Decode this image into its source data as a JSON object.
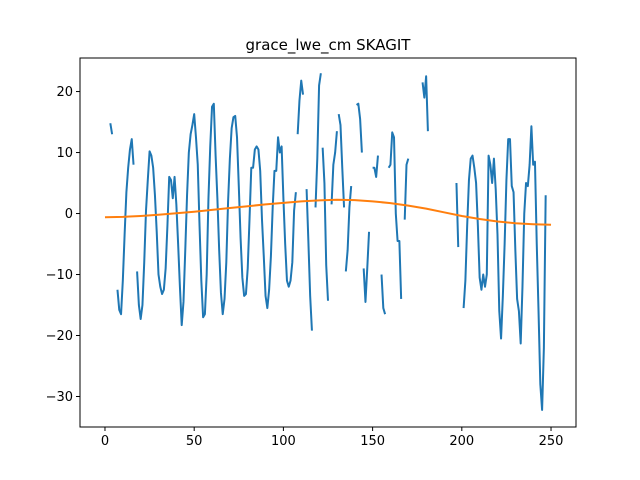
{
  "chart_data": {
    "type": "line",
    "title": "grace_lwe_cm SKAGIT",
    "xlabel": "",
    "ylabel": "",
    "xlim": [
      -14,
      264
    ],
    "ylim": [
      -35,
      25.5
    ],
    "x_ticks": [
      0,
      50,
      100,
      150,
      200,
      250
    ],
    "y_ticks": [
      -30,
      -20,
      -10,
      0,
      10,
      20
    ],
    "x_tick_labels": [
      "0",
      "50",
      "100",
      "150",
      "200",
      "250"
    ],
    "y_tick_labels": [
      "−30",
      "−20",
      "−10",
      "0",
      "10",
      "20"
    ],
    "grid": false,
    "legend": "none",
    "series": [
      {
        "color": "#1f77b4",
        "points": [
          [
            3,
            14.8
          ],
          [
            4,
            13.0
          ],
          null,
          [
            7,
            -12.5
          ],
          [
            8,
            -15.8
          ],
          [
            9,
            -16.5
          ],
          [
            10,
            -11.0
          ],
          [
            11,
            -3.5
          ],
          [
            12,
            3.5
          ],
          [
            13,
            7.5
          ],
          [
            14,
            10.5
          ],
          [
            15,
            12.2
          ],
          [
            16,
            8.0
          ],
          null,
          [
            18,
            -9.5
          ],
          [
            19,
            -15.0
          ],
          [
            20,
            -17.3
          ],
          [
            21,
            -15.0
          ],
          [
            22,
            -8.0
          ],
          [
            23,
            0.5
          ],
          [
            24,
            5.5
          ],
          [
            25,
            10.2
          ],
          [
            26,
            9.5
          ],
          [
            27,
            7.5
          ],
          [
            28,
            3.0
          ],
          [
            29,
            -3.0
          ],
          [
            30,
            -10.0
          ],
          [
            31,
            -12.0
          ],
          [
            32,
            -13.2
          ],
          [
            33,
            -12.5
          ],
          [
            34,
            -9.0
          ],
          [
            35,
            -2.0
          ],
          [
            36,
            6.0
          ],
          [
            37,
            5.5
          ],
          [
            38,
            2.5
          ],
          [
            39,
            6.0
          ],
          [
            40,
            1.5
          ],
          [
            41,
            -5.0
          ],
          [
            42,
            -12.0
          ],
          [
            43,
            -18.3
          ],
          [
            44,
            -14.5
          ],
          [
            45,
            -6.0
          ],
          [
            46,
            3.0
          ],
          [
            47,
            10.0
          ],
          [
            48,
            13.0
          ],
          [
            49,
            14.5
          ],
          [
            50,
            16.3
          ],
          [
            51,
            12.5
          ],
          [
            52,
            8.0
          ],
          [
            53,
            -2.0
          ],
          [
            54,
            -11.0
          ],
          [
            55,
            -17.0
          ],
          [
            56,
            -16.5
          ],
          [
            57,
            -10.0
          ],
          [
            58,
            2.5
          ],
          [
            59,
            11.0
          ],
          [
            60,
            17.5
          ],
          [
            61,
            18.0
          ],
          [
            62,
            9.5
          ],
          [
            63,
            2.5
          ],
          [
            64,
            -6.0
          ],
          [
            65,
            -13.0
          ],
          [
            66,
            -16.5
          ],
          [
            67,
            -14.0
          ],
          [
            68,
            -8.0
          ],
          [
            69,
            2.0
          ],
          [
            70,
            9.0
          ],
          [
            71,
            14.0
          ],
          [
            72,
            15.8
          ],
          [
            73,
            16.0
          ],
          [
            74,
            12.5
          ],
          [
            75,
            4.5
          ],
          [
            76,
            -4.0
          ],
          [
            77,
            -10.5
          ],
          [
            78,
            -13.5
          ],
          [
            79,
            -13.2
          ],
          [
            80,
            -9.0
          ],
          [
            81,
            -1.0
          ],
          [
            82,
            7.5
          ],
          [
            83,
            7.5
          ],
          [
            84,
            10.5
          ],
          [
            85,
            11.0
          ],
          [
            86,
            10.5
          ],
          [
            87,
            7.0
          ],
          [
            88,
            -1.0
          ],
          [
            89,
            -7.0
          ],
          [
            90,
            -13.5
          ],
          [
            91,
            -15.5
          ],
          [
            92,
            -12.5
          ],
          [
            93,
            -7.0
          ],
          [
            94,
            1.0
          ],
          [
            95,
            7.0
          ],
          [
            96,
            7.0
          ],
          [
            97,
            12.5
          ],
          [
            98,
            10.0
          ],
          [
            99,
            11.0
          ],
          [
            100,
            2.5
          ],
          [
            101,
            -5.0
          ],
          [
            102,
            -11.0
          ],
          [
            103,
            -12.0
          ],
          [
            104,
            -11.0
          ],
          [
            105,
            -8.0
          ],
          [
            106,
            0.5
          ],
          [
            107,
            3.5
          ],
          null,
          [
            108,
            13.0
          ],
          [
            109,
            18.5
          ],
          [
            110,
            21.8
          ],
          [
            111,
            19.5
          ],
          null,
          [
            113,
            4.0
          ],
          [
            114,
            -4.5
          ],
          [
            115,
            -13.5
          ],
          [
            116,
            -19.2
          ],
          null,
          [
            118,
            1.0
          ],
          [
            119,
            9.0
          ],
          [
            120,
            21.0
          ],
          [
            121,
            23.0
          ],
          null,
          [
            122,
            10.8
          ],
          [
            123,
            5.0
          ],
          [
            124,
            -8.5
          ],
          [
            125,
            -14.3
          ],
          null,
          [
            127,
            1.5
          ],
          [
            128,
            8.0
          ],
          [
            129,
            10.0
          ],
          [
            130,
            13.5
          ],
          null,
          [
            131,
            16.3
          ],
          [
            132,
            14.5
          ],
          [
            133,
            7.5
          ],
          [
            134,
            1.0
          ],
          null,
          [
            135,
            -9.5
          ],
          [
            136,
            -6.0
          ],
          [
            137,
            1.0
          ],
          [
            138,
            4.5
          ],
          null,
          [
            141,
            17.8
          ],
          [
            142,
            18.0
          ],
          [
            143,
            15.5
          ],
          [
            144,
            10.0
          ],
          null,
          [
            145,
            -9.0
          ],
          [
            146,
            -14.5
          ],
          [
            147,
            -9.0
          ],
          [
            148,
            -3.0
          ],
          null,
          [
            150,
            7.5
          ],
          [
            151,
            7.5
          ],
          [
            152,
            6.0
          ],
          [
            153,
            9.5
          ],
          null,
          [
            155,
            -10.0
          ],
          [
            156,
            -15.5
          ],
          [
            157,
            -16.5
          ],
          null,
          [
            159,
            7.5
          ],
          [
            160,
            8.0
          ],
          [
            161,
            13.3
          ],
          [
            162,
            12.5
          ],
          [
            163,
            0.0
          ],
          [
            164,
            -4.5
          ],
          [
            165,
            -4.5
          ],
          [
            166,
            -14.0
          ],
          null,
          [
            168,
            -1.0
          ],
          [
            169,
            8.0
          ],
          [
            170,
            9.0
          ],
          null,
          [
            178,
            21.5
          ],
          [
            179,
            19.0
          ],
          [
            180,
            22.5
          ],
          [
            181,
            13.5
          ],
          null,
          [
            197,
            5.0
          ],
          [
            198,
            -5.5
          ],
          null,
          [
            201,
            -15.5
          ],
          [
            202,
            -11.0
          ],
          [
            203,
            -2.0
          ],
          [
            204,
            5.5
          ],
          [
            205,
            9.0
          ],
          [
            206,
            9.5
          ],
          [
            207,
            7.5
          ],
          [
            208,
            5.0
          ],
          [
            209,
            -2.0
          ],
          [
            210,
            -10.5
          ],
          [
            211,
            -12.5
          ],
          [
            212,
            -10.0
          ],
          [
            213,
            -12.0
          ],
          [
            214,
            -10.0
          ],
          [
            215,
            9.5
          ],
          [
            216,
            8.0
          ],
          [
            217,
            5.0
          ],
          [
            218,
            9.0
          ],
          [
            219,
            4.0
          ],
          [
            220,
            -3.5
          ],
          [
            221,
            -16.0
          ],
          [
            222,
            -20.5
          ],
          [
            223,
            -13.5
          ],
          [
            224,
            -5.0
          ],
          [
            225,
            5.5
          ],
          [
            226,
            12.2
          ],
          [
            227,
            12.2
          ],
          [
            228,
            4.5
          ],
          [
            229,
            3.5
          ],
          [
            230,
            -6.0
          ],
          [
            231,
            -14.0
          ],
          [
            232,
            -16.0
          ],
          [
            233,
            -21.3
          ],
          [
            234,
            -12.0
          ],
          [
            235,
            0.0
          ],
          [
            236,
            5.0
          ],
          [
            237,
            4.5
          ],
          [
            238,
            8.0
          ],
          [
            239,
            14.3
          ],
          [
            240,
            8.0
          ],
          [
            241,
            8.5
          ],
          [
            242,
            -5.0
          ],
          [
            243,
            -16.0
          ],
          [
            244,
            -28.0
          ],
          [
            245,
            -32.2
          ],
          [
            246,
            -22.0
          ],
          [
            247,
            3.0
          ]
        ]
      },
      {
        "color": "#ff7f0e",
        "points": [
          [
            0,
            -0.6
          ],
          [
            10,
            -0.55
          ],
          [
            20,
            -0.4
          ],
          [
            30,
            -0.2
          ],
          [
            40,
            0.05
          ],
          [
            50,
            0.3
          ],
          [
            60,
            0.6
          ],
          [
            70,
            0.9
          ],
          [
            80,
            1.2
          ],
          [
            90,
            1.5
          ],
          [
            100,
            1.75
          ],
          [
            110,
            2.0
          ],
          [
            120,
            2.15
          ],
          [
            130,
            2.25
          ],
          [
            140,
            2.2
          ],
          [
            150,
            2.0
          ],
          [
            160,
            1.7
          ],
          [
            170,
            1.3
          ],
          [
            180,
            0.8
          ],
          [
            190,
            0.2
          ],
          [
            200,
            -0.4
          ],
          [
            210,
            -0.9
          ],
          [
            220,
            -1.3
          ],
          [
            230,
            -1.6
          ],
          [
            240,
            -1.75
          ],
          [
            250,
            -1.85
          ]
        ]
      }
    ]
  }
}
